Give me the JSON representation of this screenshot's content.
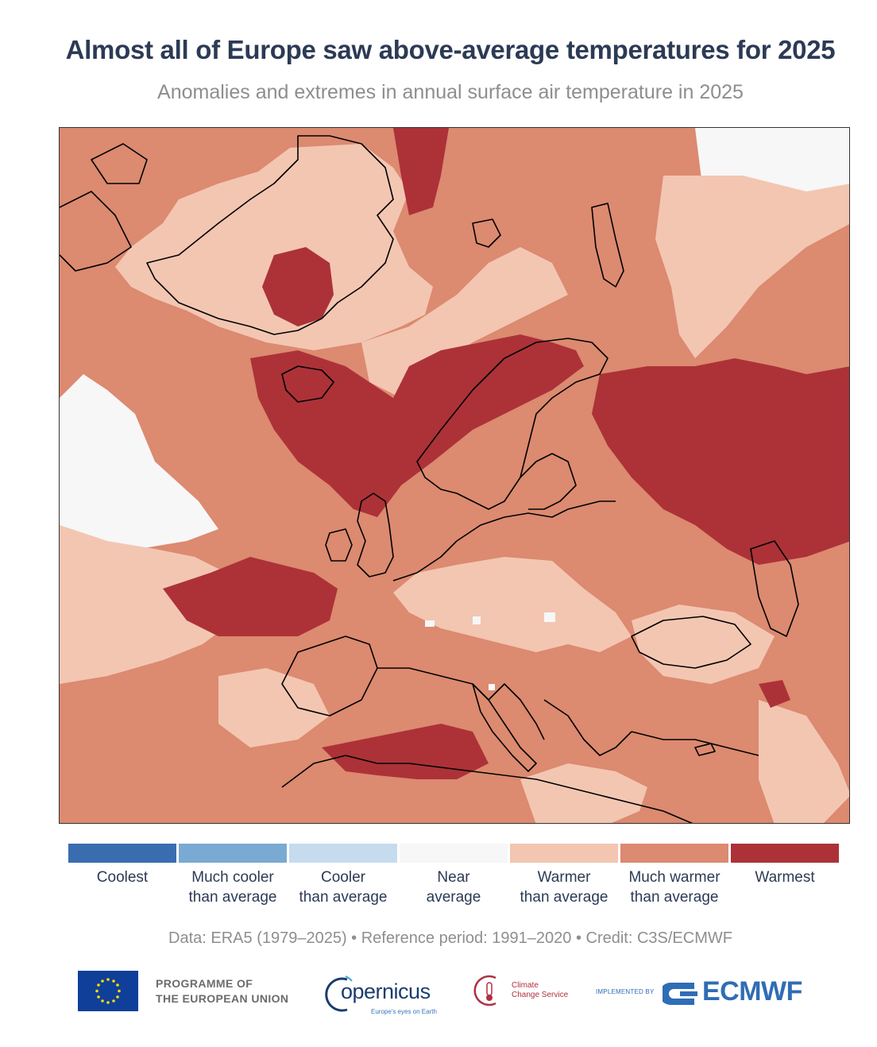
{
  "header": {
    "title": "Almost all of Europe saw above-average temperatures for 2025",
    "subtitle": "Anomalies and extremes in annual surface air temperature in 2025"
  },
  "map": {
    "colors": {
      "warmest": "#ac3238",
      "much_warmer": "#dc8a70",
      "warmer": "#f3c6b2",
      "near_average": "#f7f7f7",
      "cooler": "#c6dcee",
      "much_cooler": "#7aaad2",
      "coolest": "#3a6cb0",
      "coastline": "#000000"
    }
  },
  "legend": {
    "items": [
      {
        "line1": "Coolest",
        "line2": "",
        "color": "#3a6cb0"
      },
      {
        "line1": "Much cooler",
        "line2": "than average",
        "color": "#7aaad2"
      },
      {
        "line1": "Cooler",
        "line2": "than average",
        "color": "#c6dcee"
      },
      {
        "line1": "Near",
        "line2": "average",
        "color": "#f7f7f7"
      },
      {
        "line1": "Warmer",
        "line2": "than average",
        "color": "#f3c6b2"
      },
      {
        "line1": "Much warmer",
        "line2": "than average",
        "color": "#dc8a70"
      },
      {
        "line1": "Warmest",
        "line2": "",
        "color": "#ac3238"
      }
    ]
  },
  "credit": "Data: ERA5 (1979–2025) • Reference period: 1991–2020 • Credit: C3S/ECMWF",
  "footer": {
    "eu_line1": "PROGRAMME OF",
    "eu_line2": "THE EUROPEAN UNION",
    "copernicus": "opernicus",
    "copernicus_tag": "Europe's eyes on Earth",
    "c3s_line1": "Climate",
    "c3s_line2": "Change Service",
    "implemented_by": "IMPLEMENTED BY",
    "ecmwf": "ECMWF"
  }
}
